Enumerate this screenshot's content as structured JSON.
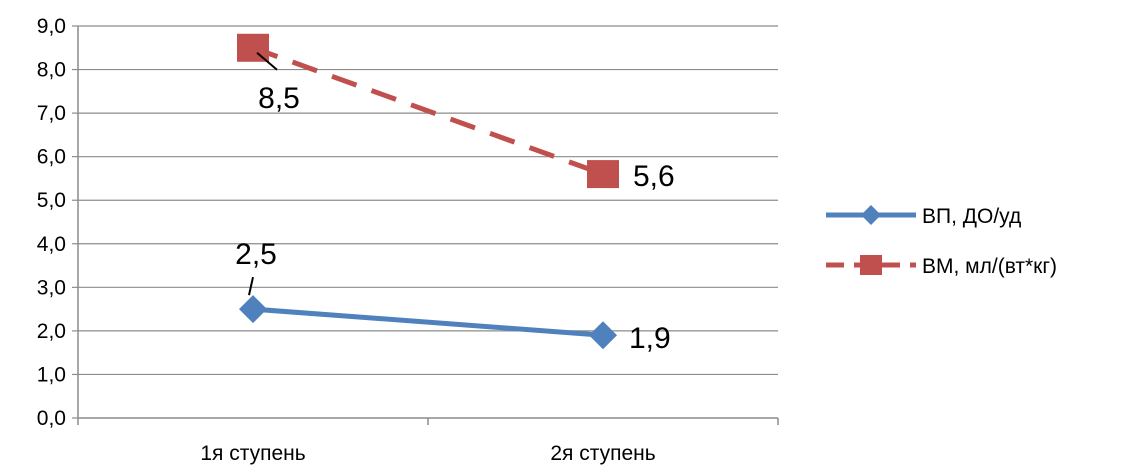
{
  "chart_data": {
    "type": "line",
    "categories": [
      "1я ступень",
      "2я ступень"
    ],
    "ylim": [
      0,
      9
    ],
    "ytick_step": 1,
    "ytick_labels": [
      "0,0",
      "1,0",
      "2,0",
      "3,0",
      "4,0",
      "5,0",
      "6,0",
      "7,0",
      "8,0",
      "9,0"
    ],
    "grid": true,
    "legend_position": "right",
    "title": "",
    "xlabel": "",
    "ylabel": "",
    "series": [
      {
        "name": "ВП, ДО/уд",
        "values": [
          2.5,
          1.9
        ],
        "value_labels": [
          "2,5",
          "1,9"
        ],
        "color": "#4F81BD",
        "marker": "diamond",
        "line_style": "solid"
      },
      {
        "name": "ВМ, мл/(вт*кг)",
        "values": [
          8.5,
          5.6
        ],
        "value_labels": [
          "8,5",
          "5,6"
        ],
        "color": "#C0504D",
        "marker": "square",
        "line_style": "dashed"
      }
    ]
  }
}
